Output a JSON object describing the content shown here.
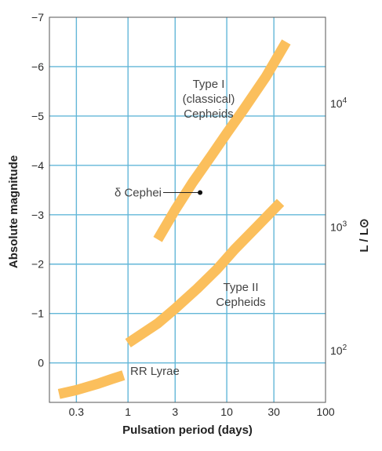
{
  "chart_data": {
    "type": "line",
    "xlabel": "Pulsation period (days)",
    "ylabel": "Absolute magnitude",
    "y2label": "L / L⊙",
    "x_scale": "log",
    "xlim": [
      0.16,
      100
    ],
    "ylim": [
      0.8,
      -7
    ],
    "grid": true,
    "x_ticks": [
      {
        "value": 0.3,
        "label": "0.3"
      },
      {
        "value": 1,
        "label": "1"
      },
      {
        "value": 3,
        "label": "3"
      },
      {
        "value": 10,
        "label": "10"
      },
      {
        "value": 30,
        "label": "30"
      },
      {
        "value": 100,
        "label": "100"
      }
    ],
    "y_ticks": [
      {
        "value": -7,
        "label": "−7"
      },
      {
        "value": -6,
        "label": "−6"
      },
      {
        "value": -5,
        "label": "−5"
      },
      {
        "value": -4,
        "label": "−4"
      },
      {
        "value": -3,
        "label": "−3"
      },
      {
        "value": -2,
        "label": "−2"
      },
      {
        "value": -1,
        "label": "−1"
      },
      {
        "value": 0,
        "label": "0"
      }
    ],
    "y2_ticks": [
      {
        "value": -5.25,
        "base": "10",
        "exp": "4"
      },
      {
        "value": -2.75,
        "base": "10",
        "exp": "3"
      },
      {
        "value": -0.25,
        "base": "10",
        "exp": "2"
      }
    ],
    "series": [
      {
        "name": "Type I (classical) Cepheids",
        "color": "#fbbf5c",
        "x": [
          2,
          3,
          4.5,
          7,
          10,
          15,
          25,
          40
        ],
        "y": [
          -2.5,
          -3.1,
          -3.65,
          -4.2,
          -4.65,
          -5.15,
          -5.8,
          -6.5
        ]
      },
      {
        "name": "Type II Cepheids",
        "color": "#fbbf5c",
        "x": [
          1,
          2,
          3,
          5,
          8,
          12,
          20,
          35
        ],
        "y": [
          -0.4,
          -0.8,
          -1.1,
          -1.5,
          -1.9,
          -2.3,
          -2.75,
          -3.25
        ]
      },
      {
        "name": "RR Lyrae",
        "color": "#fbbf5c",
        "x": [
          0.2,
          0.3,
          0.5,
          0.7,
          0.9
        ],
        "y": [
          0.63,
          0.55,
          0.42,
          0.32,
          0.25
        ]
      }
    ],
    "points": [
      {
        "name": "δ Cephei",
        "x": 5.37,
        "y": -3.45
      }
    ],
    "annotations": [
      {
        "lines": [
          "Type I",
          "(classical)",
          "Cepheids"
        ]
      },
      {
        "lines": [
          "Type II",
          "Cepheids"
        ]
      },
      {
        "lines": [
          "RR Lyrae"
        ]
      },
      {
        "lines": [
          "δ Cephei"
        ]
      }
    ]
  }
}
